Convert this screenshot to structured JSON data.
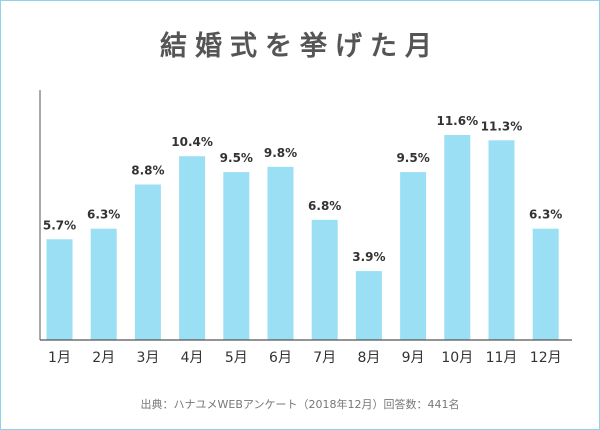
{
  "chart_data": {
    "type": "bar",
    "title": "結婚式を挙げた月",
    "categories": [
      "1月",
      "2月",
      "3月",
      "4月",
      "5月",
      "6月",
      "7月",
      "8月",
      "9月",
      "10月",
      "11月",
      "12月"
    ],
    "values": [
      5.7,
      6.3,
      8.8,
      10.4,
      9.5,
      9.8,
      6.8,
      3.9,
      9.5,
      11.6,
      11.3,
      6.3
    ],
    "value_labels": [
      "5.7%",
      "6.3%",
      "8.8%",
      "10.4%",
      "9.5%",
      "9.8%",
      "6.8%",
      "3.9%",
      "9.5%",
      "11.6%",
      "11.3%",
      "6.3%"
    ],
    "xlabel": "",
    "ylabel": "",
    "ylim": [
      0,
      11.6
    ],
    "grid": false,
    "bar_color": "#9bdff5",
    "axis_color": "#555555",
    "label_color": "#333333"
  },
  "source": "出典：ハナユメWEBアンケート（2018年12月）回答数：441名"
}
